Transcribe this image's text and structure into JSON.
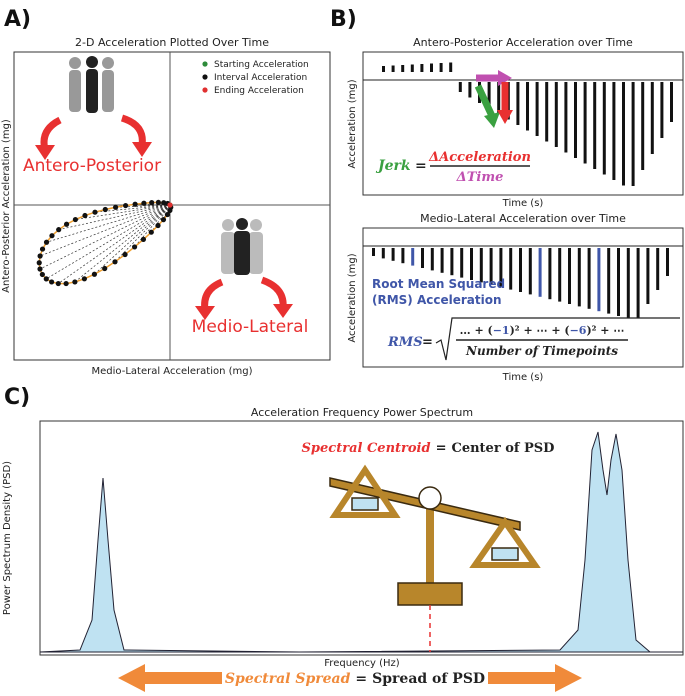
{
  "labels": {
    "a": "A)",
    "b": "B)",
    "c": "C)"
  },
  "panel_a": {
    "title": "2-D Acceleration Plotted Over Time",
    "x_label": "Medio-Lateral Acceleration (mg)",
    "y_label": "Antero-Posterior Acceleration (mg)",
    "legend": [
      {
        "name": "Starting Acceleration",
        "color": "#2e8b3a"
      },
      {
        "name": "Interval Acceleration",
        "color": "#111111"
      },
      {
        "name": "Ending Acceleration",
        "color": "#e03030"
      }
    ],
    "annotations": [
      "Antero-Posterior",
      "Medio-Lateral"
    ]
  },
  "panel_b": {
    "top": {
      "title": "Antero-Posterior Acceleration over Time",
      "y_label": "Acceleration (mg)",
      "x_label": "Time (s)",
      "formula": {
        "lhs": "Jerk",
        "eq": "=",
        "numerator": "ΔAcceleration",
        "denominator": "ΔTime"
      }
    },
    "bottom": {
      "title": "Medio-Lateral Acceleration over Time",
      "y_label": "Acceleration (mg)",
      "x_label": "Time (s)",
      "note": [
        "Root Mean Squared",
        "(RMS) Acceleration"
      ],
      "formula": {
        "lhs": "RMS",
        "eq": "=",
        "numerator": [
          "… + (",
          "−1",
          ")² + ⋯ + (",
          "−6",
          ")² + ⋯"
        ],
        "denominator": "Number of Timepoints"
      }
    }
  },
  "panel_c": {
    "title": "Acceleration Frequency Power Spectrum",
    "x_label": "Frequency (Hz)",
    "y_label": "Power Spectrum Density (PSD)",
    "centroid": {
      "term": "Spectral Centroid",
      "eq": "=",
      "text": "Center of PSD"
    },
    "spread": {
      "term": "Spectral Spread",
      "eq": "=",
      "text": "Spread of PSD"
    }
  }
}
